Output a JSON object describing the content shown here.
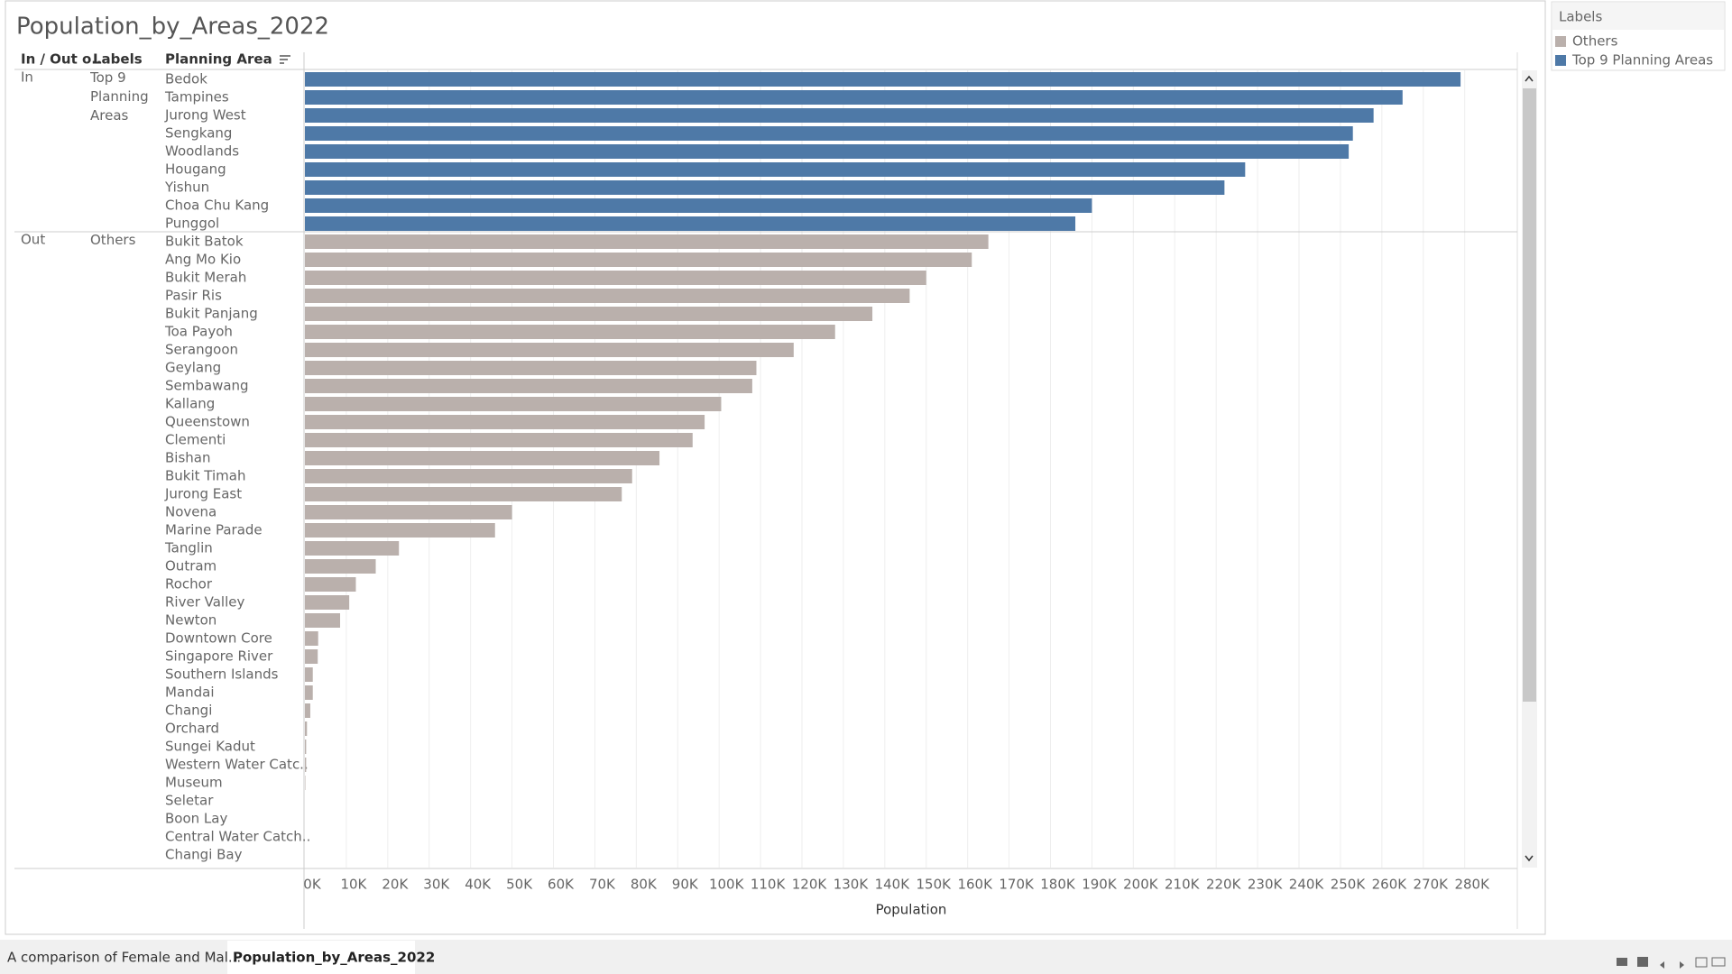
{
  "title": "Population_by_Areas_2022",
  "tabs": [
    "A comparison of Female and Mal...",
    "Population_by_Areas_2022"
  ],
  "chart_data": {
    "type": "bar",
    "orientation": "horizontal",
    "headers": [
      "In / Out o..",
      "Labels",
      "Planning Area"
    ],
    "x_label": "Population",
    "legend_position": "right",
    "grid": true,
    "xlim": [
      0,
      292700
    ],
    "xticks": [
      {
        "value": 0,
        "label": "0K"
      },
      {
        "value": 10000,
        "label": "10K"
      },
      {
        "value": 20000,
        "label": "20K"
      },
      {
        "value": 30000,
        "label": "30K"
      },
      {
        "value": 40000,
        "label": "40K"
      },
      {
        "value": 50000,
        "label": "50K"
      },
      {
        "value": 60000,
        "label": "60K"
      },
      {
        "value": 70000,
        "label": "70K"
      },
      {
        "value": 80000,
        "label": "80K"
      },
      {
        "value": 90000,
        "label": "90K"
      },
      {
        "value": 100000,
        "label": "100K"
      },
      {
        "value": 110000,
        "label": "110K"
      },
      {
        "value": 120000,
        "label": "120K"
      },
      {
        "value": 130000,
        "label": "130K"
      },
      {
        "value": 140000,
        "label": "140K"
      },
      {
        "value": 150000,
        "label": "150K"
      },
      {
        "value": 160000,
        "label": "160K"
      },
      {
        "value": 170000,
        "label": "170K"
      },
      {
        "value": 180000,
        "label": "180K"
      },
      {
        "value": 190000,
        "label": "190K"
      },
      {
        "value": 200000,
        "label": "200K"
      },
      {
        "value": 210000,
        "label": "210K"
      },
      {
        "value": 220000,
        "label": "220K"
      },
      {
        "value": 230000,
        "label": "230K"
      },
      {
        "value": 240000,
        "label": "240K"
      },
      {
        "value": 250000,
        "label": "250K"
      },
      {
        "value": 260000,
        "label": "260K"
      },
      {
        "value": 270000,
        "label": "270K"
      },
      {
        "value": 280000,
        "label": "280K"
      }
    ],
    "panes": [
      {
        "in_out": "In",
        "label": "Top 9 Planning Areas",
        "color": "#4e79a7",
        "categories": [
          "Bedok",
          "Tampines",
          "Jurong West",
          "Sengkang",
          "Woodlands",
          "Hougang",
          "Yishun",
          "Choa Chu Kang",
          "Punggol"
        ],
        "values": [
          279000,
          265000,
          258000,
          253000,
          252000,
          227000,
          222000,
          190000,
          186000
        ]
      },
      {
        "in_out": "Out",
        "label": "Others",
        "color": "#bab0ac",
        "categories": [
          "Bukit Batok",
          "Ang Mo Kio",
          "Bukit Merah",
          "Pasir Ris",
          "Bukit Panjang",
          "Toa Payoh",
          "Serangoon",
          "Geylang",
          "Sembawang",
          "Kallang",
          "Queenstown",
          "Clementi",
          "Bishan",
          "Bukit Timah",
          "Jurong East",
          "Novena",
          "Marine Parade",
          "Tanglin",
          "Outram",
          "Rochor",
          "River Valley",
          "Newton",
          "Downtown Core",
          "Singapore River",
          "Southern Islands",
          "Mandai",
          "Changi",
          "Orchard",
          "Sungei Kadut",
          "Western Water Catc..",
          "Museum",
          "Seletar",
          "Boon Lay",
          "Central Water Catch..",
          "Changi Bay"
        ],
        "values": [
          165000,
          161000,
          150000,
          146000,
          137000,
          128000,
          118000,
          109000,
          108000,
          100500,
          96500,
          93600,
          85600,
          79000,
          76500,
          50000,
          45900,
          22700,
          17100,
          12300,
          10700,
          8500,
          3200,
          3100,
          1900,
          1900,
          1300,
          500,
          300,
          300,
          100,
          0,
          0,
          0,
          0
        ]
      }
    ]
  }
}
